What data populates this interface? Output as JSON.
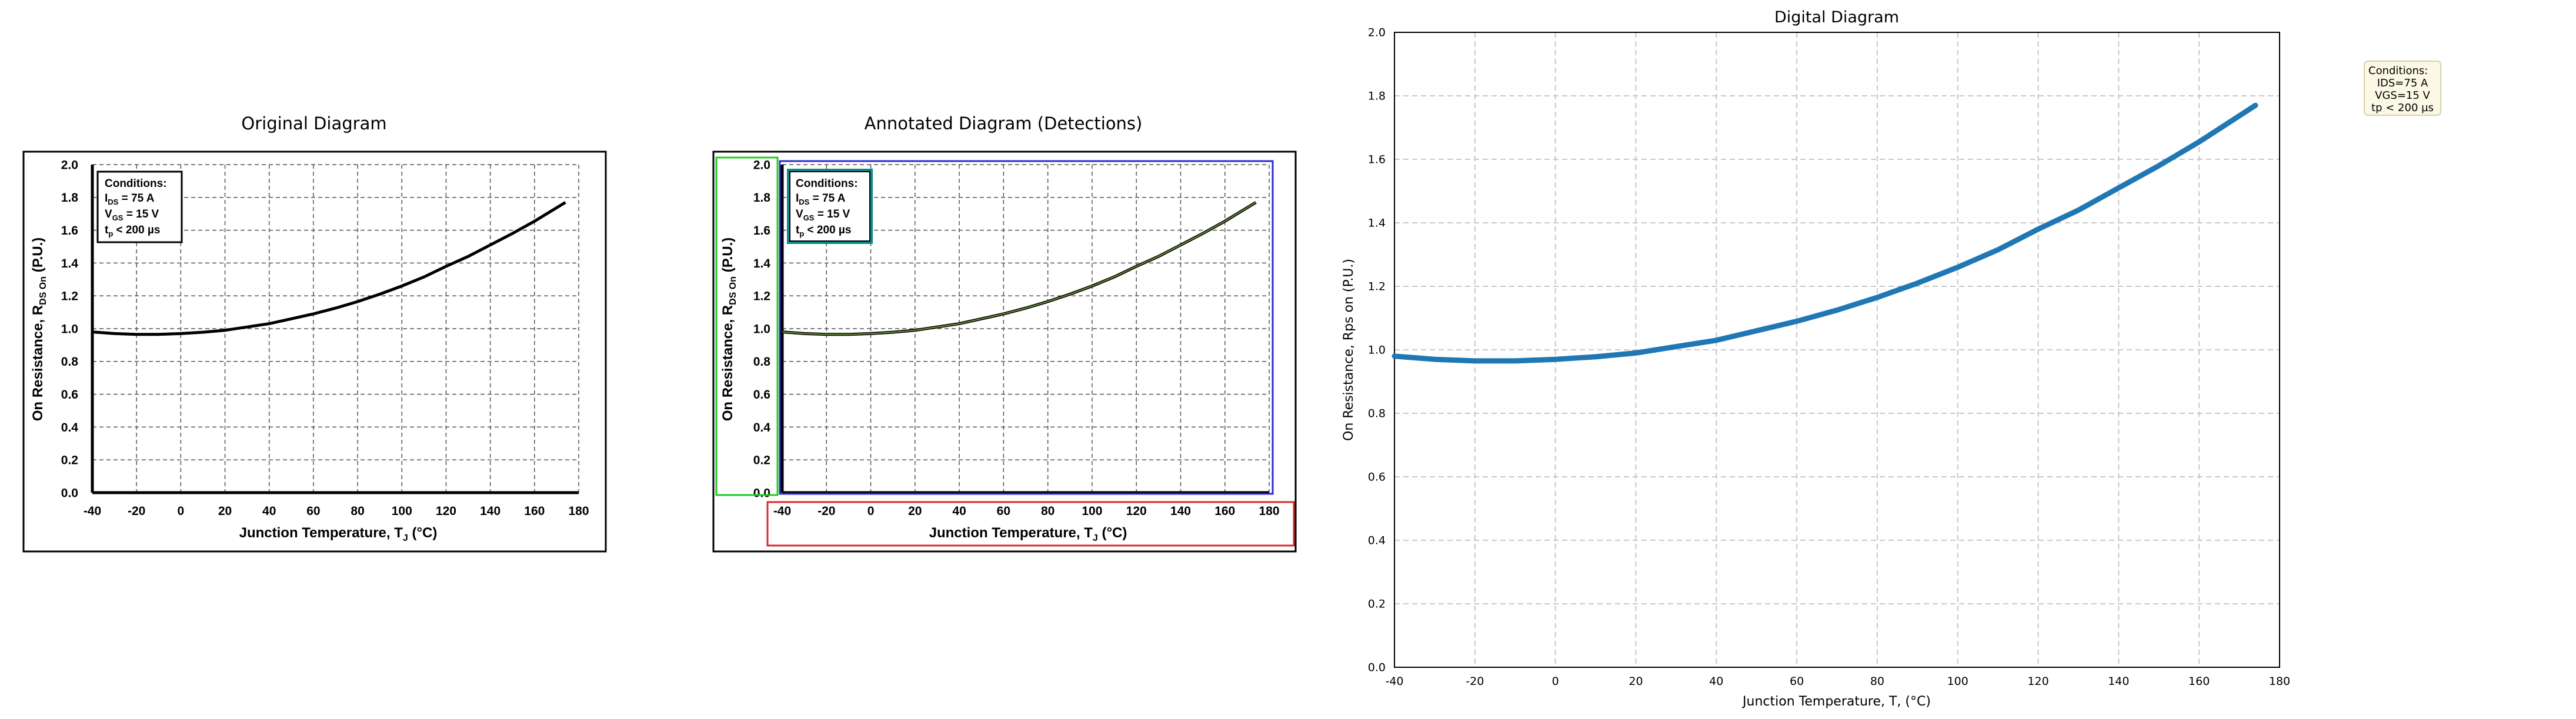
{
  "panels": {
    "original": {
      "title": "Original Diagram"
    },
    "annotated": {
      "title": "Annotated Diagram (Detections)"
    },
    "digital": {
      "title": "Digital Diagram"
    }
  },
  "source_chart": {
    "ylabel_main": "On Resistance, R",
    "ylabel_sub": "DS On",
    "ylabel_tail": " (P.U.)",
    "xlabel_main": "Junction Temperature, T",
    "xlabel_sub": "J",
    "xlabel_tail": " (°C)",
    "x_ticks": [
      "-40",
      "-20",
      "0",
      "20",
      "40",
      "60",
      "80",
      "100",
      "120",
      "140",
      "160",
      "180"
    ],
    "y_ticks": [
      "0.0",
      "0.2",
      "0.4",
      "0.6",
      "0.8",
      "1.0",
      "1.2",
      "1.4",
      "1.6",
      "1.8",
      "2.0"
    ],
    "conditions": {
      "heading": "Conditions:",
      "l1_main": "I",
      "l1_sub": "DS",
      "l1_tail": " = 75 A",
      "l2_main": "V",
      "l2_sub": "GS",
      "l2_tail": " = 15 V",
      "l3_main": "t",
      "l3_sub": "p",
      "l3_tail": " < 200 µs"
    }
  },
  "chart_data": {
    "type": "line",
    "title": "Digital Diagram",
    "xlabel": "Junction Temperature, T, (°C)",
    "ylabel": "On Resistance, Rps on (P.U.)",
    "xlim": [
      -40,
      180
    ],
    "ylim": [
      0.0,
      2.0
    ],
    "x_ticks": [
      "-40",
      "-20",
      "0",
      "20",
      "40",
      "60",
      "80",
      "100",
      "120",
      "140",
      "160",
      "180"
    ],
    "y_ticks": [
      "0.0",
      "0.2",
      "0.4",
      "0.6",
      "0.8",
      "1.0",
      "1.2",
      "1.4",
      "1.6",
      "1.8",
      "2.0"
    ],
    "grid": true,
    "line_color": "#1f77b4",
    "series": [
      {
        "x": [
          -40,
          -30,
          -20,
          -10,
          0,
          10,
          20,
          30,
          40,
          50,
          60,
          70,
          80,
          90,
          100,
          110,
          120,
          130,
          140,
          150,
          160,
          174
        ],
        "y": [
          0.98,
          0.97,
          0.965,
          0.965,
          0.97,
          0.978,
          0.99,
          1.01,
          1.03,
          1.06,
          1.09,
          1.125,
          1.165,
          1.21,
          1.26,
          1.315,
          1.38,
          1.44,
          1.51,
          1.58,
          1.655,
          1.77
        ]
      }
    ],
    "legend_box": {
      "lines": [
        "Conditions:",
        "IDS=75 A",
        "VGS=15 V",
        "tp < 200 µs"
      ]
    }
  }
}
